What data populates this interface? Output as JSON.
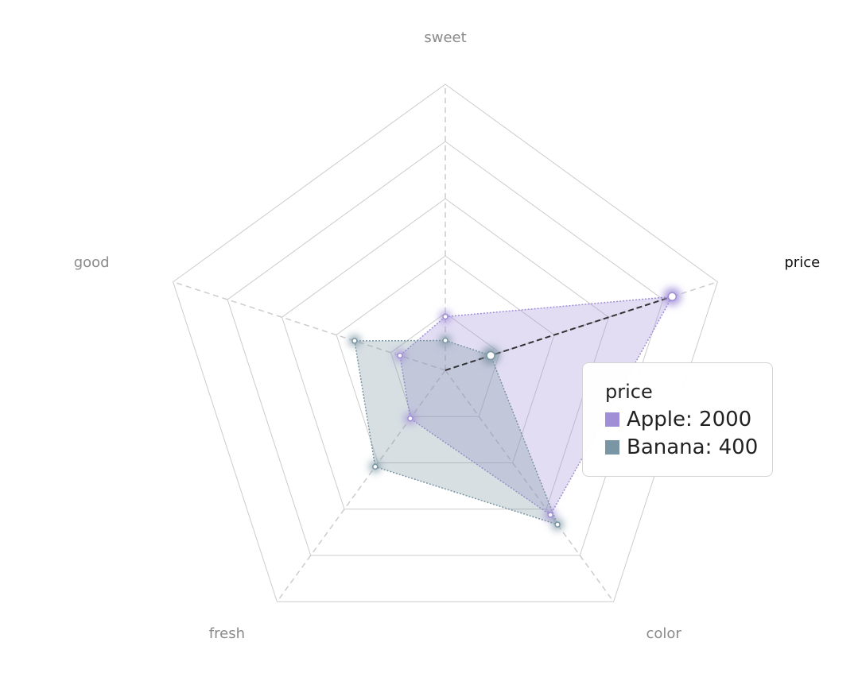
{
  "chart_data": {
    "type": "radar",
    "indicators": [
      "sweet",
      "price",
      "color",
      "fresh",
      "good"
    ],
    "max": 2400,
    "split_number": 5,
    "series": [
      {
        "name": "Apple",
        "color": "#a08ed6",
        "values": [
          450,
          2000,
          1500,
          500,
          400
        ]
      },
      {
        "name": "Banana",
        "color": "#7a95a3",
        "values": [
          250,
          400,
          1600,
          1000,
          800
        ]
      }
    ],
    "active_indicator": "price"
  },
  "tooltip": {
    "title": "price",
    "items": [
      {
        "name": "Apple",
        "value": "2000",
        "color": "#a08ed6"
      },
      {
        "name": "Banana",
        "value": "400",
        "color": "#7a95a3"
      }
    ]
  }
}
